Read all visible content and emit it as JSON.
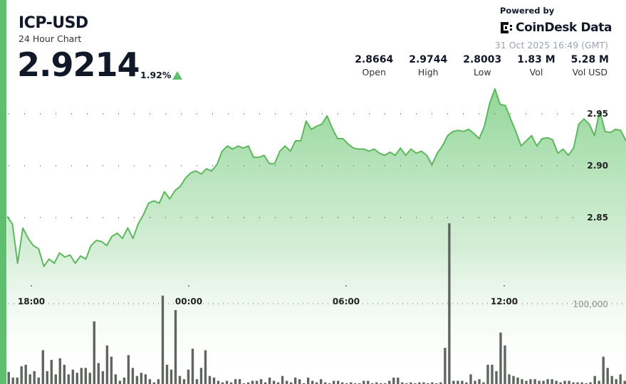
{
  "header": {
    "symbol": "ICP-USD",
    "subtitle": "24 Hour Chart",
    "price": "2.9214",
    "change": "1.92%",
    "change_direction": "up",
    "powered_by": "Powered by",
    "brand": "CoinDesk Data",
    "timestamp": "31 Oct 2025 16:49 (GMT)"
  },
  "stats": [
    {
      "value": "2.8664",
      "label": "Open"
    },
    {
      "value": "2.9744",
      "label": "High"
    },
    {
      "value": "2.8003",
      "label": "Low"
    },
    {
      "value": "1.83 M",
      "label": "Vol"
    },
    {
      "value": "5.28 M",
      "label": "Vol USD"
    }
  ],
  "colors": {
    "accent": "#5fbf6f",
    "line": "#5cb85c",
    "volume": "#5f665f",
    "up": "#5fbf6f"
  },
  "chart_data": {
    "type": "area",
    "price_axis": {
      "ticks": [
        "2.95",
        "2.90",
        "2.85"
      ],
      "tick_values": [
        2.95,
        2.9,
        2.85
      ],
      "range": [
        2.79,
        2.985
      ]
    },
    "time_axis": {
      "ticks": [
        "18:00",
        "00:00",
        "06:00",
        "12:00"
      ]
    },
    "volume_axis": {
      "ticks": [
        "100,000"
      ],
      "tick_values": [
        100000
      ]
    },
    "grid": "dotted",
    "price": [
      2.851,
      2.844,
      2.806,
      2.84,
      2.83,
      2.823,
      2.82,
      2.803,
      2.81,
      2.806,
      2.816,
      2.812,
      2.814,
      2.806,
      2.813,
      2.81,
      2.823,
      2.828,
      2.827,
      2.823,
      2.832,
      2.835,
      2.83,
      2.84,
      2.83,
      2.844,
      2.853,
      2.864,
      2.866,
      2.864,
      2.875,
      2.868,
      2.876,
      2.88,
      2.888,
      2.893,
      2.895,
      2.892,
      2.897,
      2.895,
      2.901,
      2.914,
      2.919,
      2.916,
      2.919,
      2.917,
      2.919,
      2.908,
      2.908,
      2.91,
      2.902,
      2.902,
      2.914,
      2.919,
      2.914,
      2.924,
      2.924,
      2.943,
      2.935,
      2.938,
      2.94,
      2.948,
      2.936,
      2.926,
      2.926,
      2.921,
      2.917,
      2.916,
      2.916,
      2.914,
      2.916,
      2.912,
      2.91,
      2.913,
      2.91,
      2.917,
      2.91,
      2.916,
      2.912,
      2.914,
      2.91,
      2.901,
      2.912,
      2.919,
      2.929,
      2.933,
      2.934,
      2.933,
      2.935,
      2.931,
      2.926,
      2.938,
      2.96,
      2.974,
      2.959,
      2.958,
      2.945,
      2.933,
      2.919,
      2.924,
      2.929,
      2.919,
      2.926,
      2.927,
      2.925,
      2.912,
      2.916,
      2.91,
      2.917,
      2.94,
      2.945,
      2.94,
      2.929,
      2.953,
      2.933,
      2.932,
      2.935,
      2.934,
      2.924
    ],
    "volume": [
      15000,
      8000,
      8000,
      22000,
      24000,
      12000,
      16000,
      8000,
      42000,
      16000,
      30000,
      12000,
      32000,
      24000,
      12000,
      18000,
      14000,
      20000,
      20000,
      14000,
      78000,
      26000,
      16000,
      48000,
      34000,
      12000,
      4000,
      8000,
      36000,
      20000,
      10000,
      14000,
      12000,
      6000,
      2000,
      6000,
      110000,
      24000,
      18000,
      92000,
      10000,
      6000,
      18000,
      44000,
      6000,
      20000,
      42000,
      10000,
      8000,
      4000,
      2000,
      4000,
      2000,
      6000,
      6000,
      1000,
      2000,
      4000,
      4000,
      6000,
      2000,
      8000,
      4000,
      2000,
      10000,
      4000,
      2000,
      8000,
      6000,
      1000,
      8000,
      4000,
      2000,
      6000,
      2000,
      1000,
      4000,
      4000,
      2000,
      1000,
      2000,
      1000,
      1000,
      4000,
      4000,
      1000,
      2000,
      1000,
      1000,
      4000,
      8000,
      8000,
      2000,
      1000,
      2000,
      1000,
      2000,
      2000,
      1000,
      2000,
      1000,
      2000,
      45000,
      200000,
      4000,
      4000,
      4000,
      2000,
      12000,
      4000,
      6000,
      2000,
      24000,
      24000,
      16000,
      64000,
      48000,
      12000,
      10000,
      8000,
      6000,
      4000,
      6000,
      6000,
      4000,
      4000,
      6000,
      6000,
      4000,
      2000,
      4000,
      4000,
      2000,
      2000,
      2000,
      1000,
      2000,
      10000,
      4000,
      34000,
      20000,
      10000,
      6000,
      12000,
      4000
    ]
  }
}
